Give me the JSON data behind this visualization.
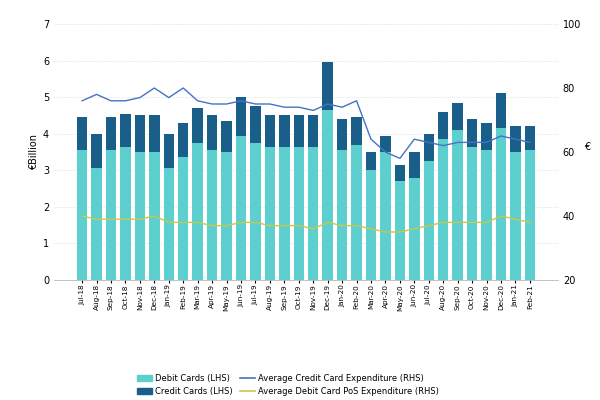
{
  "labels": [
    "Jul-18",
    "Aug-18",
    "Sep-18",
    "Oct-18",
    "Nov-18",
    "Dec-18",
    "Jan-19",
    "Feb-19",
    "Mar-19",
    "Apr-19",
    "May-19",
    "Jun-19",
    "Jul-19",
    "Aug-19",
    "Sep-19",
    "Oct-19",
    "Nov-19",
    "Dec-19",
    "Jan-20",
    "Feb-20",
    "Mar-20",
    "Apr-20",
    "May-20",
    "Jun-20",
    "Jul-20",
    "Aug-20",
    "Sep-20",
    "Oct-20",
    "Nov-20",
    "Dec-20",
    "Jan-21",
    "Feb-21"
  ],
  "debit_cards": [
    3.55,
    3.05,
    3.55,
    3.65,
    3.5,
    3.5,
    3.05,
    3.35,
    3.75,
    3.55,
    3.5,
    3.95,
    3.75,
    3.65,
    3.65,
    3.65,
    3.65,
    4.65,
    3.55,
    3.7,
    3.0,
    3.5,
    2.7,
    2.8,
    3.25,
    3.85,
    4.1,
    3.65,
    3.55,
    4.15,
    3.5,
    3.55
  ],
  "credit_cards": [
    0.9,
    0.95,
    0.9,
    0.9,
    1.0,
    1.0,
    0.95,
    0.95,
    0.95,
    0.95,
    0.85,
    1.05,
    1.0,
    0.85,
    0.85,
    0.85,
    0.85,
    1.3,
    0.85,
    0.75,
    0.5,
    0.45,
    0.45,
    0.7,
    0.75,
    0.75,
    0.75,
    0.75,
    0.75,
    0.95,
    0.7,
    0.65
  ],
  "avg_credit_expenditure": [
    76,
    78,
    76,
    76,
    77,
    80,
    77,
    80,
    76,
    75,
    75,
    76,
    75,
    75,
    74,
    74,
    73,
    75,
    74,
    76,
    64,
    60,
    58,
    64,
    63,
    62,
    63,
    63,
    63,
    65,
    64,
    63
  ],
  "avg_debit_expenditure": [
    40,
    39,
    39,
    39,
    39,
    40,
    38,
    38,
    38,
    37,
    37,
    38,
    38,
    37,
    37,
    37,
    36,
    38,
    37,
    37,
    36,
    35,
    35,
    36,
    37,
    38,
    38,
    38,
    38,
    40,
    39,
    38
  ],
  "debit_color": "#5ecfcf",
  "credit_color": "#1a5f8a",
  "avg_credit_color": "#4472c4",
  "avg_debit_color": "#c8c84a",
  "ylabel_left": "€Billion",
  "ylabel_right": "€",
  "ylim_left": [
    0,
    7
  ],
  "ylim_right": [
    20,
    100
  ],
  "yticks_left": [
    0,
    1,
    2,
    3,
    4,
    5,
    6,
    7
  ],
  "yticks_right": [
    20,
    40,
    60,
    80,
    100
  ],
  "bg_color": "#ffffff",
  "grid_color": "#d0d0d0"
}
